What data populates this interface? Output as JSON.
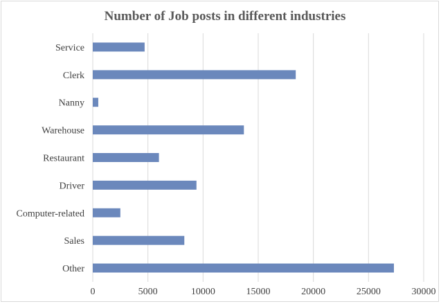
{
  "chart_data": {
    "type": "bar",
    "orientation": "horizontal",
    "title": "Number of Job posts in different industries",
    "xlabel": "",
    "ylabel": "",
    "categories": [
      "Service",
      "Clerk",
      "Nanny",
      "Warehouse",
      "Restaurant",
      "Driver",
      "Computer-related",
      "Sales",
      "Other"
    ],
    "values": [
      4700,
      18400,
      500,
      13700,
      6000,
      9400,
      2500,
      8300,
      27300
    ],
    "xlim": [
      0,
      30000
    ],
    "xticks": [
      0,
      5000,
      10000,
      15000,
      20000,
      25000,
      30000
    ],
    "grid": true,
    "legend": "none",
    "bar_color": "#6b88bc"
  }
}
